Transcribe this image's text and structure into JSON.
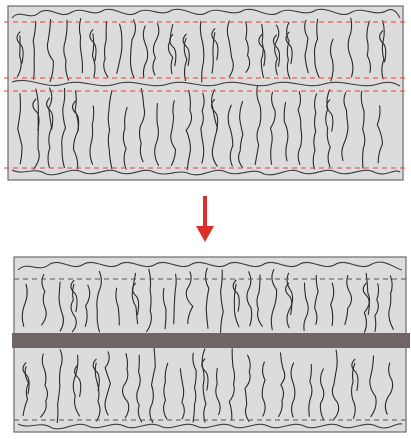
{
  "diagram": {
    "before": {
      "guide_color": "#e0453c",
      "guide_lines": 4
    },
    "after": {
      "guide_color": "#555555",
      "guide_lines": 2,
      "band_color": "#6f6565"
    },
    "arrow": {
      "color": "#d9302a",
      "direction": "down"
    },
    "fabric_color": "#dcdcdc",
    "stroke_color": "#3d3d3d"
  }
}
